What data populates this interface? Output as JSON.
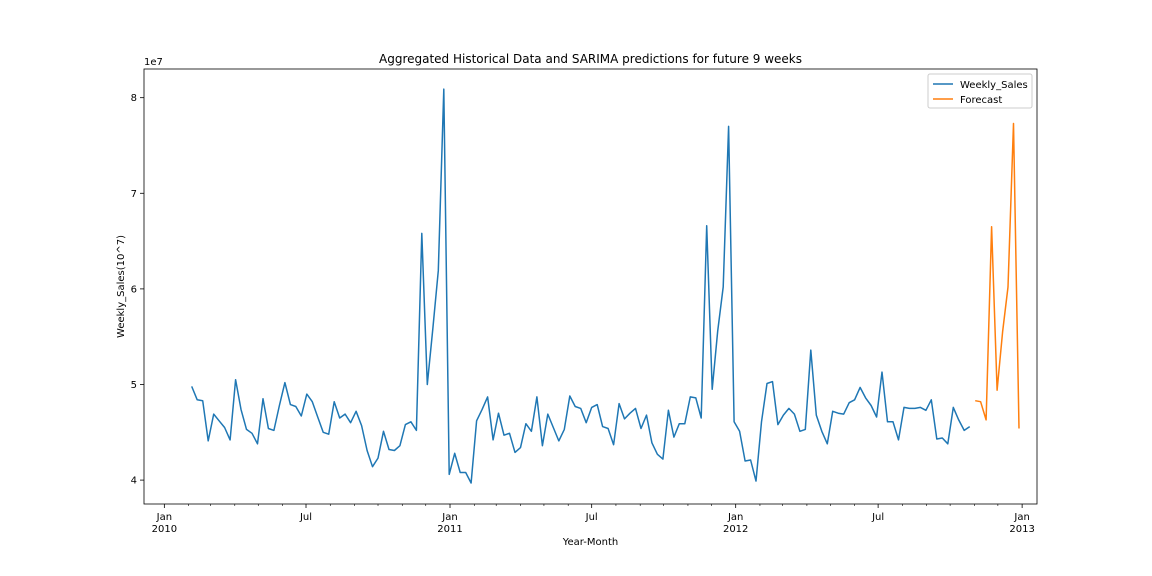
{
  "chart_data": {
    "type": "line",
    "title": "Aggregated Historical Data and SARIMA predictions for future 9 weeks",
    "xlabel": "Year-Month",
    "ylabel": "Weekly_Sales(10^7)",
    "y_offset_label": "1e7",
    "y_tick_values": [
      4,
      5,
      6,
      7,
      8
    ],
    "y_tick_labels": [
      "4",
      "5",
      "6",
      "7",
      "8"
    ],
    "ylim": [
      3.75,
      8.3
    ],
    "x_ticks": [
      {
        "date": "2010-01-01",
        "line1": "Jan",
        "line2": "2010"
      },
      {
        "date": "2010-07-01",
        "line1": "Jul",
        "line2": ""
      },
      {
        "date": "2011-01-01",
        "line1": "Jan",
        "line2": "2011"
      },
      {
        "date": "2011-07-01",
        "line1": "Jul",
        "line2": ""
      },
      {
        "date": "2012-01-01",
        "line1": "Jan",
        "line2": "2012"
      },
      {
        "date": "2012-07-01",
        "line1": "Jul",
        "line2": ""
      },
      {
        "date": "2013-01-01",
        "line1": "Jan",
        "line2": "2013"
      }
    ],
    "xlim": [
      "2009-12-06",
      "2013-01-20"
    ],
    "legend_position": "top-right",
    "grid": false,
    "series": [
      {
        "name": "Weekly_Sales",
        "color": "#1f77b4",
        "start_date": "2010-02-05",
        "interval_days": 7,
        "values": [
          4.98,
          4.84,
          4.83,
          4.41,
          4.69,
          4.62,
          4.55,
          4.42,
          5.05,
          4.74,
          4.53,
          4.49,
          4.38,
          4.85,
          4.54,
          4.52,
          4.78,
          5.02,
          4.79,
          4.77,
          4.67,
          4.9,
          4.82,
          4.66,
          4.5,
          4.48,
          4.82,
          4.65,
          4.69,
          4.6,
          4.72,
          4.57,
          4.31,
          4.14,
          4.23,
          4.51,
          4.32,
          4.31,
          4.36,
          4.58,
          4.61,
          4.52,
          6.58,
          5.0,
          5.58,
          6.19,
          8.09,
          4.06,
          4.28,
          4.08,
          4.08,
          3.97,
          4.62,
          4.74,
          4.87,
          4.42,
          4.7,
          4.47,
          4.49,
          4.29,
          4.34,
          4.59,
          4.51,
          4.87,
          4.36,
          4.69,
          4.55,
          4.41,
          4.53,
          4.88,
          4.77,
          4.75,
          4.6,
          4.76,
          4.79,
          4.56,
          4.54,
          4.37,
          4.8,
          4.64,
          4.7,
          4.75,
          4.54,
          4.68,
          4.39,
          4.27,
          4.22,
          4.73,
          4.45,
          4.59,
          4.59,
          4.87,
          4.86,
          4.65,
          6.66,
          4.95,
          5.56,
          6.02,
          7.7,
          4.61,
          4.51,
          4.2,
          4.21,
          3.99,
          4.61,
          5.01,
          5.03,
          4.58,
          4.68,
          4.75,
          4.69,
          4.51,
          4.53,
          5.36,
          4.68,
          4.51,
          4.38,
          4.72,
          4.7,
          4.69,
          4.81,
          4.84,
          4.97,
          4.86,
          4.78,
          4.66,
          5.13,
          4.61,
          4.61,
          4.42,
          4.76,
          4.75,
          4.75,
          4.76,
          4.73,
          4.84,
          4.43,
          4.44,
          4.38,
          4.76,
          4.63,
          4.52,
          4.56
        ]
      },
      {
        "name": "Forecast",
        "color": "#ff7f0e",
        "start_date": "2012-11-02",
        "interval_days": 7,
        "values": [
          4.83,
          4.82,
          4.63,
          6.65,
          4.94,
          5.55,
          6.02,
          7.73,
          4.54
        ]
      }
    ]
  }
}
